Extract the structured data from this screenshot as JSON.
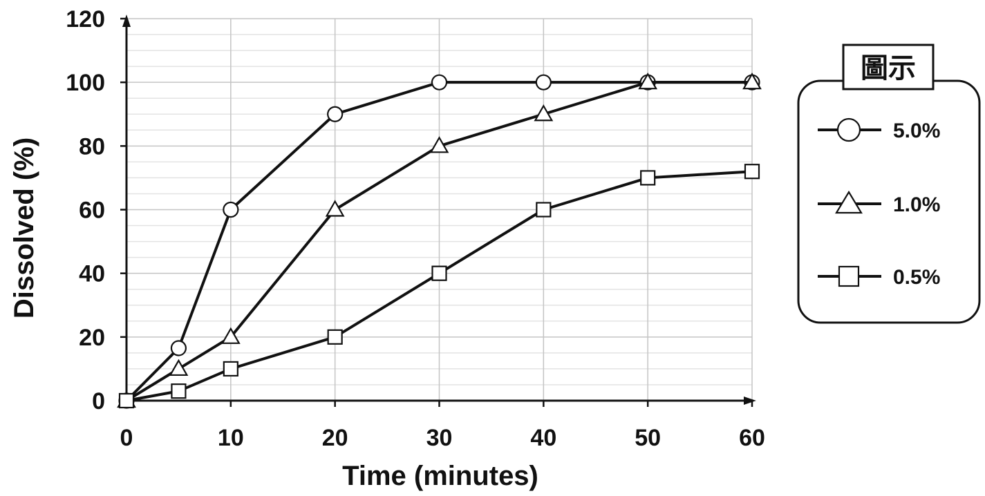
{
  "chart_data": {
    "type": "line",
    "xlabel": "Time (minutes)",
    "ylabel": "Dissolved (%)",
    "xlim": [
      0,
      60
    ],
    "ylim": [
      0,
      120
    ],
    "x_ticks": [
      0,
      10,
      20,
      30,
      40,
      50,
      60
    ],
    "y_ticks": [
      0,
      20,
      40,
      60,
      80,
      100,
      120
    ],
    "grid": true,
    "legend": {
      "title": "圖示",
      "placement": "right"
    },
    "series": [
      {
        "name": "5.0%",
        "marker": "circle",
        "x": [
          0,
          5,
          10,
          20,
          30,
          40,
          50,
          60
        ],
        "y": [
          0,
          16.5,
          60,
          90,
          100,
          100,
          100,
          100
        ]
      },
      {
        "name": "1.0%",
        "marker": "triangle",
        "x": [
          0,
          5,
          10,
          20,
          30,
          40,
          50,
          60
        ],
        "y": [
          0,
          10,
          20,
          60,
          80,
          90,
          100,
          100
        ]
      },
      {
        "name": "0.5%",
        "marker": "square",
        "x": [
          0,
          5,
          10,
          20,
          30,
          40,
          50,
          60
        ],
        "y": [
          0,
          3,
          10,
          20,
          40,
          60,
          70,
          72
        ]
      }
    ]
  }
}
